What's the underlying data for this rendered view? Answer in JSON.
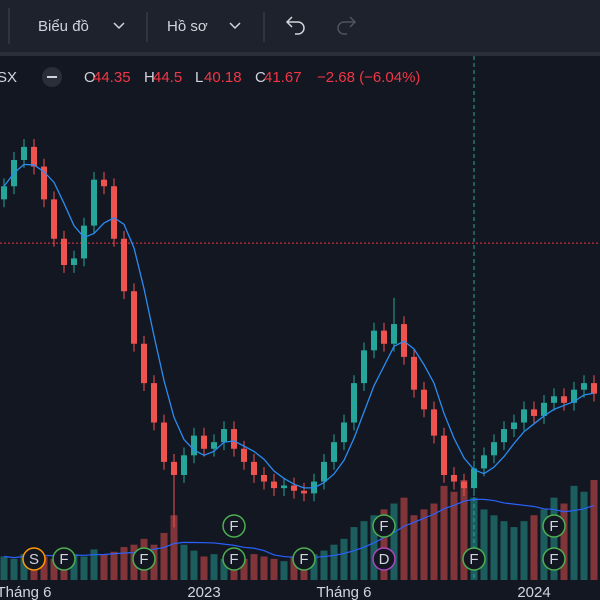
{
  "toolbar": {
    "chart_menu": "Biểu đồ",
    "profile_menu": "Hồ sơ"
  },
  "legend": {
    "symbol": "SX",
    "o_label": "O",
    "o": 44.35,
    "h_label": "H",
    "h": 44.5,
    "l_label": "L",
    "l": 40.18,
    "c_label": "C",
    "c": 41.67,
    "change": "−2.68 (−6.04%)"
  },
  "chart_data": {
    "type": "candlestick",
    "categories": [
      null,
      null,
      "Tháng 6",
      null,
      null,
      null,
      null,
      null,
      null,
      null,
      null,
      null,
      null,
      null,
      null,
      null,
      null,
      null,
      null,
      null,
      "2023",
      null,
      null,
      null,
      null,
      null,
      null,
      null,
      null,
      null,
      null,
      null,
      null,
      null,
      "Tháng 6",
      null,
      null,
      null,
      null,
      null,
      null,
      null,
      null,
      null,
      null,
      null,
      null,
      null,
      null,
      null,
      null,
      null,
      null,
      "2024",
      null,
      null,
      null,
      null,
      null,
      null
    ],
    "open": [
      45,
      46,
      48,
      49,
      47.5,
      45,
      42,
      40,
      40.5,
      43,
      46.5,
      46,
      42,
      38,
      34,
      31,
      28,
      25,
      24,
      25.5,
      27,
      26,
      26.5,
      27.5,
      26,
      25,
      24,
      23.5,
      23,
      23.2,
      22.8,
      22.6,
      23.5,
      25,
      26.5,
      28,
      31,
      33.5,
      35,
      34,
      35.5,
      33,
      30.5,
      29,
      27,
      24,
      23.5,
      23,
      24.5,
      25.5,
      26.5,
      27.5,
      28,
      29,
      28.5,
      29.5,
      30,
      29.5,
      30.5,
      31
    ],
    "high": [
      46.6,
      48.6,
      49.6,
      49.6,
      48.1,
      45.6,
      42.6,
      41.1,
      43.6,
      47.1,
      47.1,
      46.6,
      42.6,
      38.6,
      34.6,
      31.6,
      28.6,
      25.6,
      26.1,
      27.6,
      27.6,
      27.1,
      28.1,
      28.1,
      26.6,
      25.6,
      24.6,
      24.1,
      23.8,
      23.8,
      23.4,
      24.1,
      25.6,
      27.1,
      28.6,
      31.6,
      34.1,
      35.6,
      35.6,
      37.5,
      36.1,
      33.6,
      31.1,
      29.6,
      27.6,
      24.6,
      24.1,
      25.1,
      26.1,
      27.1,
      28.1,
      28.6,
      29.6,
      29.6,
      30.1,
      30.6,
      30.6,
      31.1,
      31.6,
      31.6
    ],
    "low": [
      44.4,
      45.4,
      47.4,
      46.9,
      44.4,
      41.4,
      39.4,
      39.4,
      39.9,
      42.4,
      45.4,
      41.4,
      37.4,
      33.4,
      30.4,
      27.4,
      24.4,
      20,
      23.4,
      24.9,
      25.4,
      25.4,
      25.9,
      25.4,
      24.4,
      23.4,
      22.9,
      22.4,
      22.4,
      22.2,
      22,
      22,
      22.9,
      24.4,
      25.9,
      27.4,
      30.4,
      32.9,
      33.4,
      33.4,
      32.4,
      29.9,
      28.4,
      26.4,
      23.4,
      22.9,
      22.4,
      22.4,
      23.9,
      24.9,
      25.9,
      26.9,
      27.4,
      27.9,
      27.9,
      28.9,
      28.9,
      28.9,
      29.9,
      29.6
    ],
    "close": [
      46,
      48,
      49,
      47.5,
      45,
      42,
      40,
      40.5,
      43,
      46.5,
      46,
      42,
      38,
      34,
      31,
      28,
      25,
      24,
      25.5,
      27,
      26,
      26.5,
      27.5,
      26,
      25,
      24,
      23.5,
      23,
      23.2,
      22.8,
      22.6,
      23.5,
      25,
      26.5,
      28,
      31,
      33.5,
      35,
      34,
      35.5,
      33,
      30.5,
      29,
      27,
      24,
      23.5,
      23,
      24.5,
      25.5,
      26.5,
      27.5,
      28,
      29,
      28.5,
      29.5,
      30,
      29.5,
      30.5,
      31,
      30.2
    ],
    "volume": [
      20,
      18,
      22,
      25,
      20,
      18,
      24,
      22,
      20,
      26,
      22,
      24,
      28,
      30,
      35,
      30,
      40,
      55,
      30,
      25,
      20,
      22,
      18,
      20,
      18,
      22,
      20,
      18,
      16,
      20,
      18,
      22,
      25,
      30,
      35,
      45,
      50,
      55,
      60,
      65,
      70,
      55,
      60,
      65,
      80,
      75,
      85,
      70,
      60,
      55,
      50,
      45,
      50,
      55,
      60,
      70,
      65,
      80,
      75,
      85
    ],
    "ylim": [
      16,
      56
    ],
    "up_color": "#26a69a",
    "down_color": "#ef5350",
    "events": [
      {
        "label": "S",
        "index": 3,
        "row": 0
      },
      {
        "label": "F",
        "index": 6,
        "row": 0
      },
      {
        "label": "F",
        "index": 14,
        "row": 0
      },
      {
        "label": "F",
        "index": 23,
        "row": 0
      },
      {
        "label": "F",
        "index": 23,
        "row": 1
      },
      {
        "label": "F",
        "index": 30,
        "row": 0
      },
      {
        "label": "F",
        "index": 38,
        "row": 1
      },
      {
        "label": "D",
        "index": 38,
        "row": 0
      },
      {
        "label": "F",
        "index": 47,
        "row": 0
      },
      {
        "label": "F",
        "index": 55,
        "row": 0
      },
      {
        "label": "F",
        "index": 55,
        "row": 1
      }
    ]
  }
}
